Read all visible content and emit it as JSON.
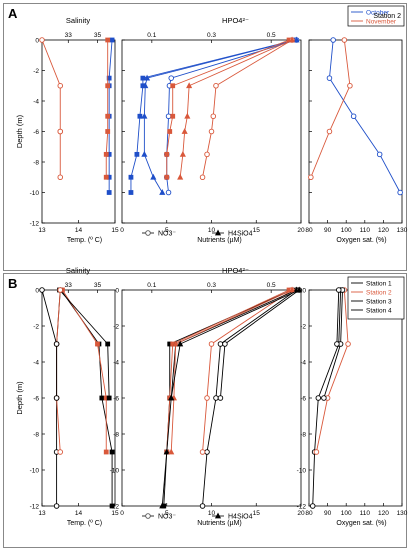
{
  "panels": [
    {
      "letter": "A",
      "chart_data": {
        "type": "line",
        "panel_label": "A",
        "ylabel": "Depth  (m)",
        "ylim": [
          -12,
          0
        ],
        "y_ticks": [
          "0",
          "-2",
          "-4",
          "-6",
          "-8",
          "-10",
          "-12"
        ],
        "depth_labels_on_each_plot": false,
        "subplots": [
          {
            "id": "temp-salinity",
            "top_axis": {
              "label": "Salinity",
              "ticks": [
                33,
                35
              ],
              "range": [
                31.2,
                36.2
              ]
            },
            "bottom_axis": {
              "label": "Temp. (º C)",
              "ticks": [
                13,
                14,
                15
              ],
              "range": [
                13,
                15
              ]
            },
            "series": [
              {
                "name": "Salinity October",
                "axis": "top",
                "color": "#1f4fc9",
                "marker": "square",
                "x": [
                  36.0,
                  35.8,
                  35.8,
                  35.8,
                  35.8,
                  35.8,
                  35.8
                ],
                "y": [
                  0,
                  -2.5,
                  -3,
                  -5,
                  -7.5,
                  -9,
                  -10
                ]
              },
              {
                "name": "Salinity November",
                "axis": "top",
                "color": "#d9583b",
                "marker": "square",
                "x": [
                  35.7,
                  35.7,
                  35.7,
                  35.7,
                  35.6,
                  35.6
                ],
                "y": [
                  0,
                  -3,
                  -5,
                  -6,
                  -7.5,
                  -9
                ]
              },
              {
                "name": "Temp. November",
                "axis": "bottom",
                "color": "#d9583b",
                "marker": "circle",
                "x": [
                  13.0,
                  13.5,
                  13.5,
                  13.5,
                  13.5
                ],
                "y": [
                  0,
                  -3,
                  -6,
                  -6,
                  -9
                ]
              }
            ]
          },
          {
            "id": "nutrients",
            "top_axis": {
              "label": "HPO4²⁻",
              "ticks": [
                0.1,
                0.3,
                0.5
              ],
              "range": [
                0,
                0.6
              ]
            },
            "bottom_axis": {
              "label": "Nutrients  (µM)",
              "ticks": [
                0,
                5,
                10,
                15,
                20
              ],
              "range": [
                0,
                20
              ]
            },
            "series": [
              {
                "name": "HPO4²⁻ October",
                "axis": "top",
                "color": "#1f4fc9",
                "marker": "square",
                "x": [
                  0.58,
                  0.07,
                  0.07,
                  0.06,
                  0.05,
                  0.03,
                  0.03
                ],
                "y": [
                  0,
                  -2.5,
                  -3,
                  -5,
                  -7.5,
                  -9,
                  -10
                ]
              },
              {
                "name": "NO3⁻ October",
                "axis": "bottom",
                "color": "#1f4fc9",
                "marker": "circle",
                "x": [
                  19.5,
                  5.5,
                  5.3,
                  5.2,
                  5.0,
                  5.0,
                  5.2
                ],
                "y": [
                  0,
                  -2.5,
                  -3,
                  -5,
                  -7.5,
                  -9,
                  -10
                ]
              },
              {
                "name": "H4SiO4 October",
                "axis": "bottom",
                "color": "#1f4fc9",
                "marker": "triangle",
                "x": [
                  19.5,
                  2.8,
                  2.6,
                  2.5,
                  2.5,
                  3.5,
                  4.5
                ],
                "y": [
                  0,
                  -2.5,
                  -3,
                  -5,
                  -7.5,
                  -9,
                  -10
                ]
              },
              {
                "name": "HPO4²⁻ November",
                "axis": "top",
                "color": "#d9583b",
                "marker": "square",
                "x": [
                  0.56,
                  0.17,
                  0.17,
                  0.16,
                  0.15,
                  0.15
                ],
                "y": [
                  0,
                  -3,
                  -5,
                  -6,
                  -7.5,
                  -9
                ]
              },
              {
                "name": "NO3⁻ November",
                "axis": "bottom",
                "color": "#d9583b",
                "marker": "circle",
                "x": [
                  19.0,
                  10.5,
                  10.2,
                  10.0,
                  9.5,
                  9.0
                ],
                "y": [
                  0,
                  -3,
                  -5,
                  -6,
                  -7.5,
                  -9
                ]
              },
              {
                "name": "H4SiO4 November",
                "axis": "bottom",
                "color": "#d9583b",
                "marker": "triangle",
                "x": [
                  19.0,
                  7.5,
                  7.3,
                  7.0,
                  6.8,
                  6.5
                ],
                "y": [
                  0,
                  -3,
                  -5,
                  -6,
                  -7.5,
                  -9
                ]
              }
            ],
            "legend_labels": [
              "NO3⁻",
              "H4SiO4"
            ]
          },
          {
            "id": "oxygen",
            "bottom_axis": {
              "label": "Oxygen sat. (%)",
              "ticks": [
                80,
                90,
                100,
                110,
                120,
                130
              ],
              "range": [
                80,
                130
              ]
            },
            "series": [
              {
                "name": "October",
                "axis": "bottom",
                "color": "#1f4fc9",
                "marker": "circle",
                "x": [
                  93,
                  91,
                  104,
                  118,
                  129
                ],
                "y": [
                  0,
                  -2.5,
                  -5,
                  -7.5,
                  -10
                ]
              },
              {
                "name": "November",
                "axis": "bottom",
                "color": "#d9583b",
                "marker": "circle",
                "x": [
                  99,
                  102,
                  91,
                  81
                ],
                "y": [
                  0,
                  -3,
                  -6,
                  -9
                ]
              }
            ],
            "legend": {
              "placement": "top-right",
              "entries": [
                "October",
                "November"
              ],
              "title": "Station 2"
            }
          }
        ]
      }
    },
    {
      "letter": "B",
      "chart_data": {
        "type": "line",
        "panel_label": "B",
        "ylabel": "Depth  (m)",
        "ylim": [
          -12,
          0
        ],
        "y_ticks": [
          "0",
          "-2",
          "-4",
          "-6",
          "-8",
          "-10",
          "-12"
        ],
        "depth_labels_on_each_plot": true,
        "subplots": [
          {
            "id": "temp-salinity",
            "top_axis": {
              "label": "Salinity",
              "ticks": [
                33,
                35
              ],
              "range": [
                31.2,
                36.2
              ]
            },
            "bottom_axis": {
              "label": "Temp. (º C)",
              "ticks": [
                13,
                14,
                15
              ],
              "range": [
                13,
                15
              ]
            },
            "series": [
              {
                "name": "Salinity Station 1",
                "axis": "top",
                "color": "#000000",
                "marker": "square",
                "x": [
                  32.5,
                  35.1,
                  35.3,
                  36.0,
                  36.0
                ],
                "y": [
                  0,
                  -3,
                  -6,
                  -9,
                  -12
                ]
              },
              {
                "name": "Salinity Station 2",
                "axis": "top",
                "color": "#d9583b",
                "marker": "square",
                "x": [
                  32.6,
                  35.0,
                  35.6,
                  35.6
                ],
                "y": [
                  0,
                  -3,
                  -6,
                  -9
                ]
              },
              {
                "name": "Salinity Station 3",
                "axis": "top",
                "color": "#000000",
                "marker": "square",
                "x": [
                  32.4,
                  35.7,
                  35.8
                ],
                "y": [
                  0,
                  -3,
                  -6
                ]
              },
              {
                "name": "Temp. Station 1",
                "axis": "bottom",
                "color": "#000000",
                "marker": "circle",
                "x": [
                  13.5,
                  13.4,
                  13.4,
                  13.4,
                  13.4
                ],
                "y": [
                  0,
                  -3,
                  -6,
                  -9,
                  -12
                ]
              },
              {
                "name": "Temp. Station 2",
                "axis": "bottom",
                "color": "#d9583b",
                "marker": "circle",
                "x": [
                  13.5,
                  13.4,
                  13.4,
                  13.5
                ],
                "y": [
                  0,
                  -3,
                  -6,
                  -9
                ]
              },
              {
                "name": "Temp. Station 3",
                "axis": "bottom",
                "color": "#000000",
                "marker": "circle",
                "x": [
                  13.0,
                  13.4,
                  13.4
                ],
                "y": [
                  0,
                  -3,
                  -6
                ]
              }
            ],
            "legend_labels": [
              "Salinity",
              "Temp. (º C)"
            ]
          },
          {
            "id": "nutrients",
            "top_axis": {
              "label": "HPO4²⁻",
              "ticks": [
                0.1,
                0.3,
                0.5
              ],
              "range": [
                0,
                0.6
              ]
            },
            "bottom_axis": {
              "label": "Nutrients  (µM)",
              "ticks": [
                0,
                5,
                10,
                15,
                20
              ],
              "range": [
                0,
                20
              ]
            },
            "series": [
              {
                "name": "HPO4²⁻ Station 1",
                "axis": "top",
                "color": "#000000",
                "marker": "square",
                "x": [
                  0.57,
                  0.16,
                  0.16,
                  0.15,
                  0.14
                ],
                "y": [
                  0,
                  -3,
                  -6,
                  -9,
                  -12
                ]
              },
              {
                "name": "HPO4²⁻ Station 2",
                "axis": "top",
                "color": "#d9583b",
                "marker": "square",
                "x": [
                  0.56,
                  0.17,
                  0.16,
                  0.15
                ],
                "y": [
                  0,
                  -3,
                  -6,
                  -9
                ]
              },
              {
                "name": "NO3⁻ Station 1",
                "axis": "bottom",
                "color": "#000000",
                "marker": "circle",
                "x": [
                  19.5,
                  11.0,
                  10.5,
                  9.5,
                  9.0
                ],
                "y": [
                  0,
                  -3,
                  -6,
                  -9,
                  -12
                ]
              },
              {
                "name": "NO3⁻ Station 2",
                "axis": "bottom",
                "color": "#d9583b",
                "marker": "circle",
                "x": [
                  19.0,
                  10.0,
                  9.5,
                  9.0
                ],
                "y": [
                  0,
                  -3,
                  -6,
                  -9
                ]
              },
              {
                "name": "H4SiO4 Station 1",
                "axis": "bottom",
                "color": "#000000",
                "marker": "triangle",
                "x": [
                  19.5,
                  6.0,
                  5.5,
                  5.0,
                  4.5
                ],
                "y": [
                  0,
                  -3,
                  -6,
                  -9,
                  -12
                ]
              },
              {
                "name": "H4SiO4 Station 2",
                "axis": "bottom",
                "color": "#d9583b",
                "marker": "triangle",
                "x": [
                  19.0,
                  6.0,
                  5.8,
                  5.5
                ],
                "y": [
                  0,
                  -3,
                  -6,
                  -9
                ]
              },
              {
                "name": "NO3⁻ Station 3",
                "axis": "bottom",
                "color": "#000000",
                "marker": "circle",
                "x": [
                  19.8,
                  11.5,
                  11.0
                ],
                "y": [
                  0,
                  -3,
                  -6
                ]
              },
              {
                "name": "H4SiO4 Station 3",
                "axis": "bottom",
                "color": "#000000",
                "marker": "triangle",
                "x": [
                  19.8,
                  6.5,
                  5.5
                ],
                "y": [
                  0,
                  -3,
                  -6
                ]
              }
            ],
            "legend_labels": [
              "NO3⁻",
              "H4SiO4"
            ]
          },
          {
            "id": "oxygen",
            "bottom_axis": {
              "label": "Oxygen sat. (%)",
              "ticks": [
                80,
                90,
                100,
                110,
                120,
                130
              ],
              "range": [
                80,
                130
              ]
            },
            "series": [
              {
                "name": "Station 1",
                "axis": "bottom",
                "color": "#000000",
                "marker": "circle",
                "x": [
                  97,
                  96,
                  85,
                  83,
                  82
                ],
                "y": [
                  0,
                  -3,
                  -6,
                  -9,
                  -12
                ]
              },
              {
                "name": "Station 2",
                "axis": "bottom",
                "color": "#d9583b",
                "marker": "circle",
                "x": [
                  99,
                  101,
                  90,
                  84
                ],
                "y": [
                  0,
                  -3,
                  -6,
                  -9
                ]
              },
              {
                "name": "Station 3",
                "axis": "bottom",
                "color": "#000000",
                "marker": "circle",
                "x": [
                  98,
                  97,
                  88
                ],
                "y": [
                  0,
                  -3,
                  -6
                ]
              },
              {
                "name": "Station 4",
                "axis": "bottom",
                "color": "#000000",
                "marker": "circle",
                "x": [
                  96,
                  95
                ],
                "y": [
                  0,
                  -3
                ]
              }
            ],
            "legend": {
              "placement": "top-right",
              "entries": [
                "Station 1",
                "Station 2",
                "Station 3",
                "Station 4"
              ]
            },
            "legend_labels": [
              "Oxygen sat. (%)"
            ]
          }
        ]
      }
    }
  ]
}
